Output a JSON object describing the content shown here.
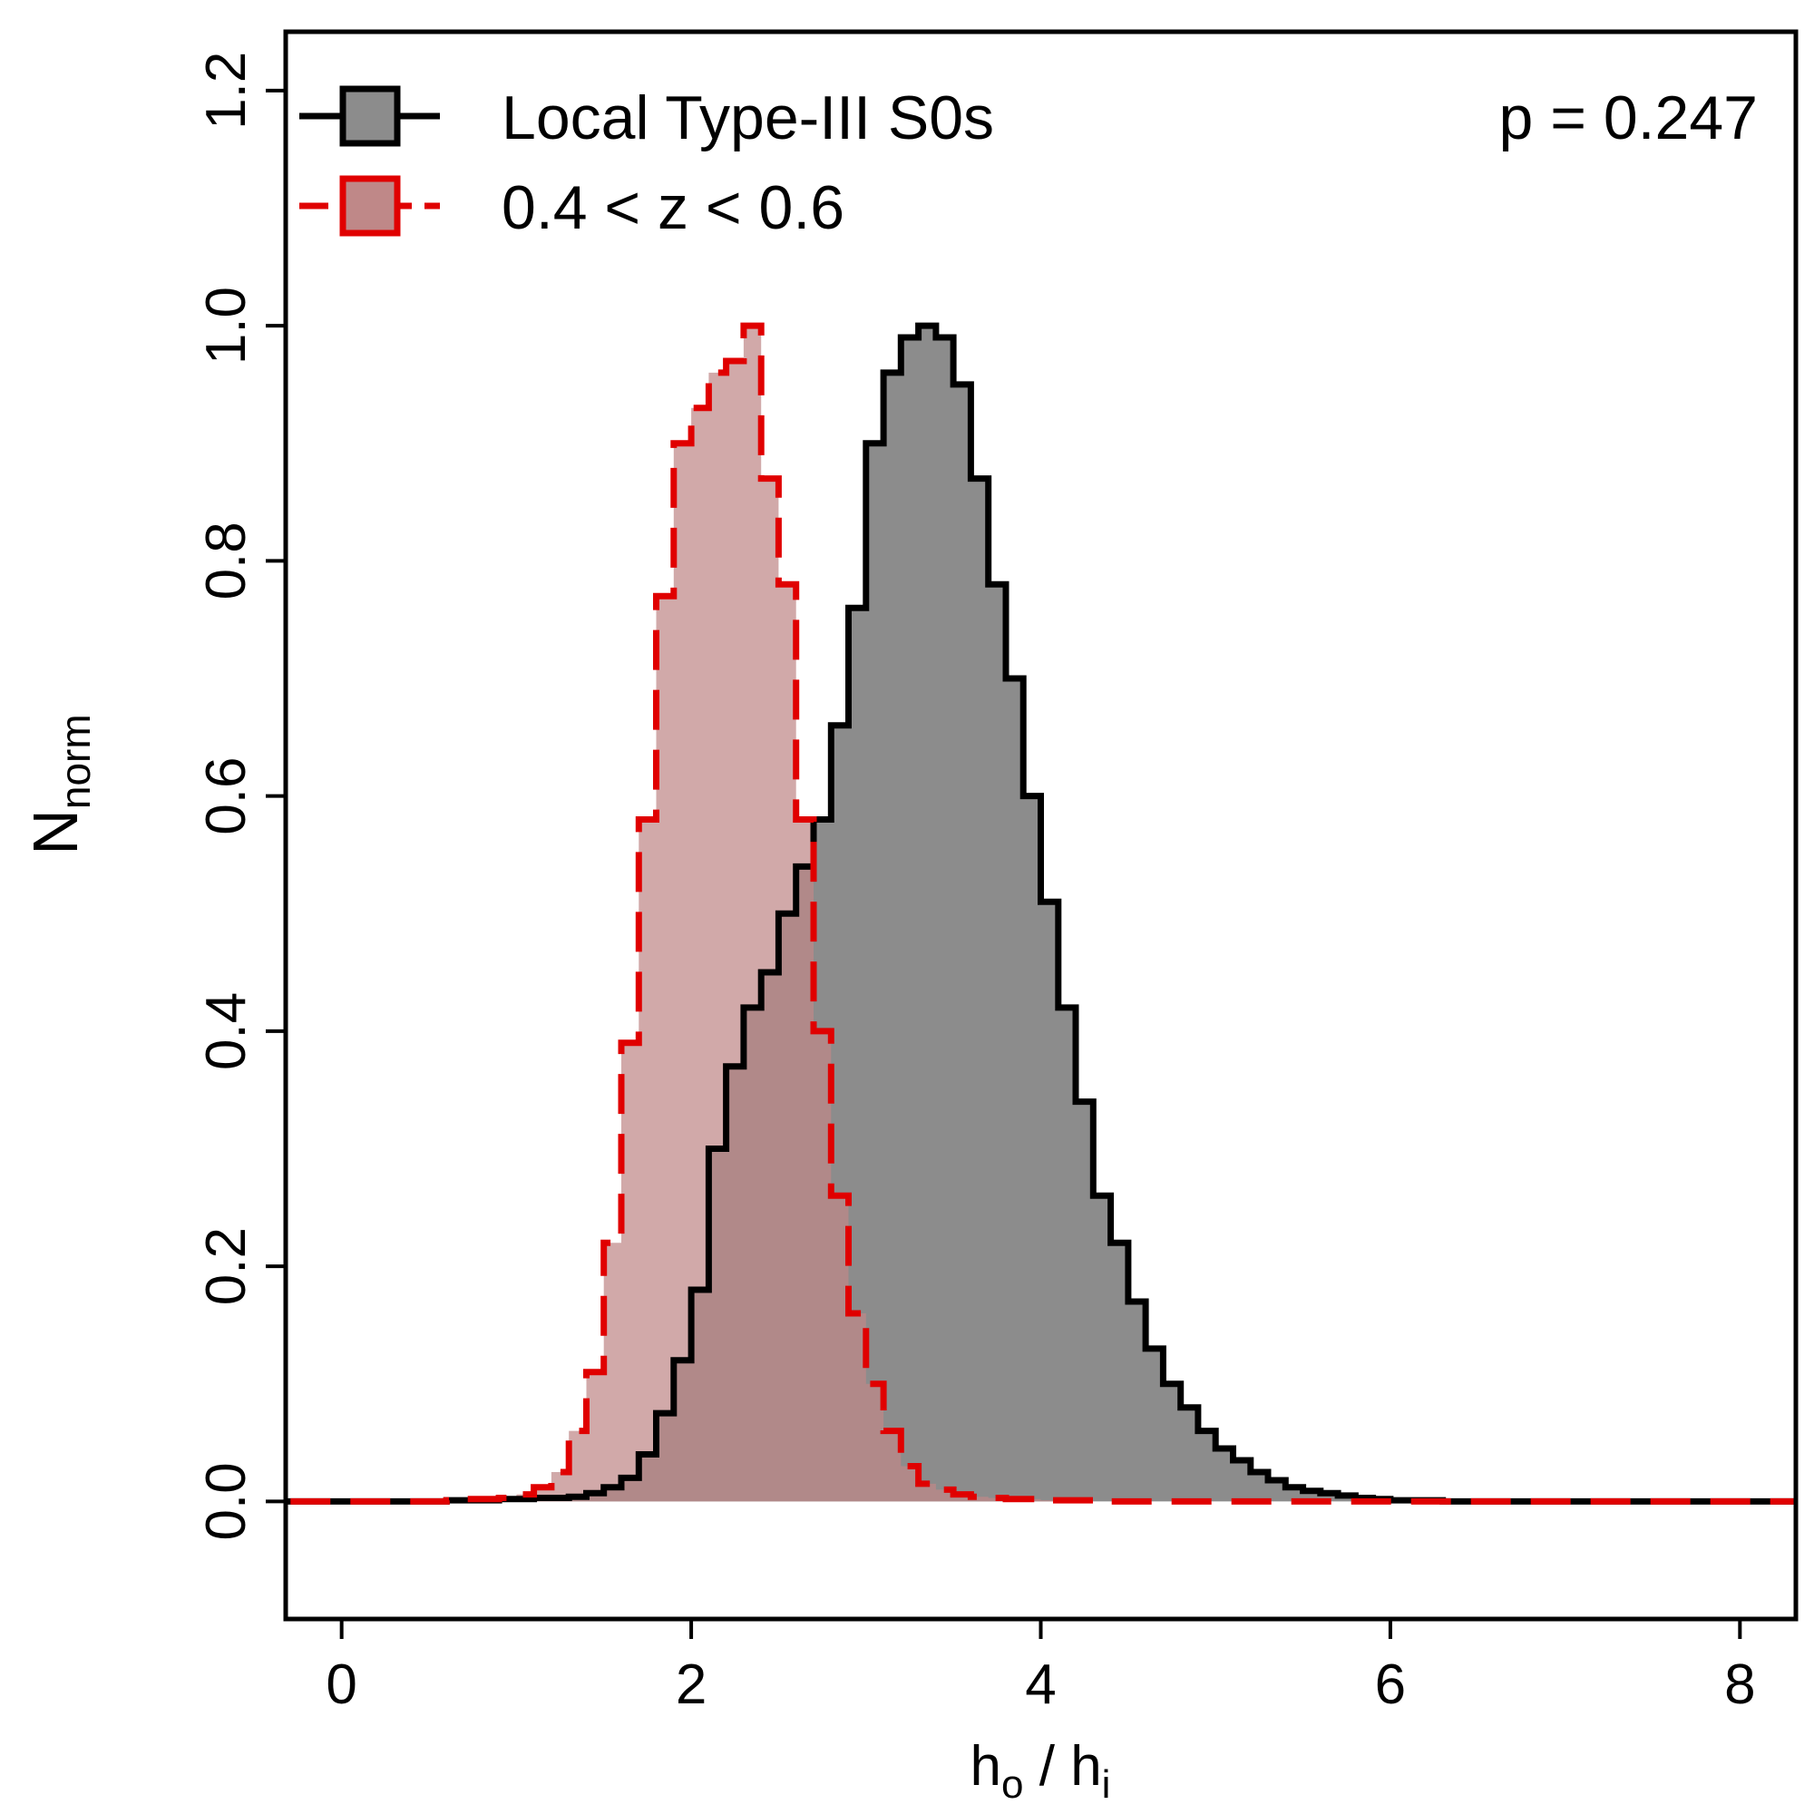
{
  "chart_data": {
    "type": "histogram",
    "title": "",
    "xlabel": "h_o / h_i",
    "xlabel_parts": {
      "h1": "h",
      "sub1": "o",
      "sep": " / ",
      "h2": "h",
      "sub2": "i"
    },
    "ylabel": "N_norm",
    "ylabel_parts": {
      "main": "N",
      "sub": "norm"
    },
    "xlim": [
      -0.32,
      8.32
    ],
    "ylim": [
      -0.1,
      1.25
    ],
    "xticks": [
      0,
      2,
      4,
      6,
      8
    ],
    "xtick_labels": [
      "0",
      "2",
      "4",
      "6",
      "8"
    ],
    "yticks": [
      0.0,
      0.2,
      0.4,
      0.6,
      0.8,
      1.0,
      1.2
    ],
    "ytick_labels": [
      "0.0",
      "0.2",
      "0.4",
      "0.6",
      "0.8",
      "1.0",
      "1.2"
    ],
    "bin_start": 0.0,
    "bin_width": 0.1,
    "annotation": "p = 0.247",
    "legend_position": "top-left",
    "series": [
      {
        "name": "Local Type-III S0s",
        "line_color": "#000000",
        "fill_color": "#8c8c8c",
        "line_style": "solid",
        "values": [
          0,
          0,
          0,
          0,
          0,
          0,
          0.001,
          0.001,
          0.001,
          0.002,
          0.002,
          0.003,
          0.003,
          0.004,
          0.007,
          0.012,
          0.02,
          0.04,
          0.075,
          0.12,
          0.18,
          0.3,
          0.37,
          0.42,
          0.45,
          0.5,
          0.54,
          0.58,
          0.66,
          0.76,
          0.9,
          0.96,
          0.99,
          1.0,
          0.99,
          0.95,
          0.87,
          0.78,
          0.7,
          0.6,
          0.51,
          0.42,
          0.34,
          0.26,
          0.22,
          0.17,
          0.13,
          0.1,
          0.08,
          0.06,
          0.045,
          0.035,
          0.025,
          0.018,
          0.012,
          0.009,
          0.007,
          0.005,
          0.003,
          0.002,
          0.001,
          0.001,
          0.001,
          0,
          0,
          0,
          0,
          0,
          0,
          0,
          0,
          0,
          0,
          0,
          0,
          0,
          0,
          0,
          0,
          0,
          0,
          0,
          0,
          0
        ]
      },
      {
        "name": "0.4 < z < 0.6",
        "line_color": "#e00000",
        "fill_color": "#bf8888",
        "line_style": "dashed",
        "values": [
          0,
          0,
          0,
          0,
          0,
          0,
          0.001,
          0.002,
          0.002,
          0.003,
          0.006,
          0.012,
          0.025,
          0.06,
          0.11,
          0.22,
          0.39,
          0.58,
          0.77,
          0.9,
          0.93,
          0.96,
          0.97,
          1.0,
          0.87,
          0.78,
          0.58,
          0.4,
          0.26,
          0.16,
          0.1,
          0.06,
          0.03,
          0.015,
          0.01,
          0.006,
          0.004,
          0.003,
          0.002,
          0.002,
          0.001,
          0.001,
          0.001,
          0,
          0,
          0,
          0,
          0,
          0,
          0,
          0,
          0,
          0,
          0,
          0,
          0,
          0,
          0,
          0,
          0,
          0,
          0,
          0,
          0,
          0,
          0,
          0,
          0,
          0,
          0,
          0,
          0,
          0,
          0,
          0,
          0,
          0,
          0,
          0,
          0,
          0,
          0,
          0,
          0
        ]
      }
    ]
  }
}
